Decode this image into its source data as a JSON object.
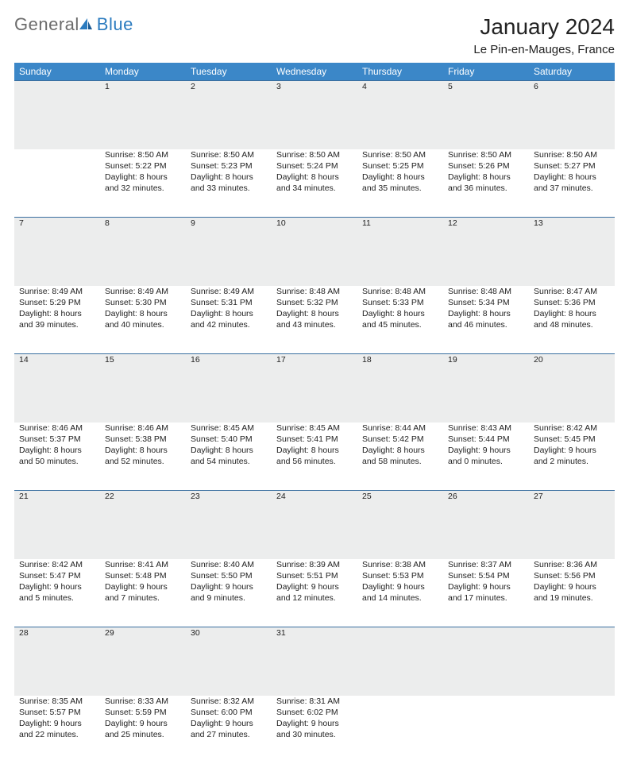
{
  "brand": {
    "text1": "General",
    "text2": "Blue"
  },
  "title": "January 2024",
  "location": "Le Pin-en-Mauges, France",
  "colors": {
    "header_bg": "#3b87c8",
    "header_text": "#ffffff",
    "daynum_bg": "#eceded",
    "daynum_border": "#3a6fa0",
    "logo_gray": "#6b6b6b",
    "logo_blue": "#2b7bbf"
  },
  "weekdays": [
    "Sunday",
    "Monday",
    "Tuesday",
    "Wednesday",
    "Thursday",
    "Friday",
    "Saturday"
  ],
  "weeks": [
    {
      "nums": [
        "",
        "1",
        "2",
        "3",
        "4",
        "5",
        "6"
      ],
      "cells": [
        null,
        {
          "sunrise": "Sunrise: 8:50 AM",
          "sunset": "Sunset: 5:22 PM",
          "d1": "Daylight: 8 hours",
          "d2": "and 32 minutes."
        },
        {
          "sunrise": "Sunrise: 8:50 AM",
          "sunset": "Sunset: 5:23 PM",
          "d1": "Daylight: 8 hours",
          "d2": "and 33 minutes."
        },
        {
          "sunrise": "Sunrise: 8:50 AM",
          "sunset": "Sunset: 5:24 PM",
          "d1": "Daylight: 8 hours",
          "d2": "and 34 minutes."
        },
        {
          "sunrise": "Sunrise: 8:50 AM",
          "sunset": "Sunset: 5:25 PM",
          "d1": "Daylight: 8 hours",
          "d2": "and 35 minutes."
        },
        {
          "sunrise": "Sunrise: 8:50 AM",
          "sunset": "Sunset: 5:26 PM",
          "d1": "Daylight: 8 hours",
          "d2": "and 36 minutes."
        },
        {
          "sunrise": "Sunrise: 8:50 AM",
          "sunset": "Sunset: 5:27 PM",
          "d1": "Daylight: 8 hours",
          "d2": "and 37 minutes."
        }
      ]
    },
    {
      "nums": [
        "7",
        "8",
        "9",
        "10",
        "11",
        "12",
        "13"
      ],
      "cells": [
        {
          "sunrise": "Sunrise: 8:49 AM",
          "sunset": "Sunset: 5:29 PM",
          "d1": "Daylight: 8 hours",
          "d2": "and 39 minutes."
        },
        {
          "sunrise": "Sunrise: 8:49 AM",
          "sunset": "Sunset: 5:30 PM",
          "d1": "Daylight: 8 hours",
          "d2": "and 40 minutes."
        },
        {
          "sunrise": "Sunrise: 8:49 AM",
          "sunset": "Sunset: 5:31 PM",
          "d1": "Daylight: 8 hours",
          "d2": "and 42 minutes."
        },
        {
          "sunrise": "Sunrise: 8:48 AM",
          "sunset": "Sunset: 5:32 PM",
          "d1": "Daylight: 8 hours",
          "d2": "and 43 minutes."
        },
        {
          "sunrise": "Sunrise: 8:48 AM",
          "sunset": "Sunset: 5:33 PM",
          "d1": "Daylight: 8 hours",
          "d2": "and 45 minutes."
        },
        {
          "sunrise": "Sunrise: 8:48 AM",
          "sunset": "Sunset: 5:34 PM",
          "d1": "Daylight: 8 hours",
          "d2": "and 46 minutes."
        },
        {
          "sunrise": "Sunrise: 8:47 AM",
          "sunset": "Sunset: 5:36 PM",
          "d1": "Daylight: 8 hours",
          "d2": "and 48 minutes."
        }
      ]
    },
    {
      "nums": [
        "14",
        "15",
        "16",
        "17",
        "18",
        "19",
        "20"
      ],
      "cells": [
        {
          "sunrise": "Sunrise: 8:46 AM",
          "sunset": "Sunset: 5:37 PM",
          "d1": "Daylight: 8 hours",
          "d2": "and 50 minutes."
        },
        {
          "sunrise": "Sunrise: 8:46 AM",
          "sunset": "Sunset: 5:38 PM",
          "d1": "Daylight: 8 hours",
          "d2": "and 52 minutes."
        },
        {
          "sunrise": "Sunrise: 8:45 AM",
          "sunset": "Sunset: 5:40 PM",
          "d1": "Daylight: 8 hours",
          "d2": "and 54 minutes."
        },
        {
          "sunrise": "Sunrise: 8:45 AM",
          "sunset": "Sunset: 5:41 PM",
          "d1": "Daylight: 8 hours",
          "d2": "and 56 minutes."
        },
        {
          "sunrise": "Sunrise: 8:44 AM",
          "sunset": "Sunset: 5:42 PM",
          "d1": "Daylight: 8 hours",
          "d2": "and 58 minutes."
        },
        {
          "sunrise": "Sunrise: 8:43 AM",
          "sunset": "Sunset: 5:44 PM",
          "d1": "Daylight: 9 hours",
          "d2": "and 0 minutes."
        },
        {
          "sunrise": "Sunrise: 8:42 AM",
          "sunset": "Sunset: 5:45 PM",
          "d1": "Daylight: 9 hours",
          "d2": "and 2 minutes."
        }
      ]
    },
    {
      "nums": [
        "21",
        "22",
        "23",
        "24",
        "25",
        "26",
        "27"
      ],
      "cells": [
        {
          "sunrise": "Sunrise: 8:42 AM",
          "sunset": "Sunset: 5:47 PM",
          "d1": "Daylight: 9 hours",
          "d2": "and 5 minutes."
        },
        {
          "sunrise": "Sunrise: 8:41 AM",
          "sunset": "Sunset: 5:48 PM",
          "d1": "Daylight: 9 hours",
          "d2": "and 7 minutes."
        },
        {
          "sunrise": "Sunrise: 8:40 AM",
          "sunset": "Sunset: 5:50 PM",
          "d1": "Daylight: 9 hours",
          "d2": "and 9 minutes."
        },
        {
          "sunrise": "Sunrise: 8:39 AM",
          "sunset": "Sunset: 5:51 PM",
          "d1": "Daylight: 9 hours",
          "d2": "and 12 minutes."
        },
        {
          "sunrise": "Sunrise: 8:38 AM",
          "sunset": "Sunset: 5:53 PM",
          "d1": "Daylight: 9 hours",
          "d2": "and 14 minutes."
        },
        {
          "sunrise": "Sunrise: 8:37 AM",
          "sunset": "Sunset: 5:54 PM",
          "d1": "Daylight: 9 hours",
          "d2": "and 17 minutes."
        },
        {
          "sunrise": "Sunrise: 8:36 AM",
          "sunset": "Sunset: 5:56 PM",
          "d1": "Daylight: 9 hours",
          "d2": "and 19 minutes."
        }
      ]
    },
    {
      "nums": [
        "28",
        "29",
        "30",
        "31",
        "",
        "",
        ""
      ],
      "cells": [
        {
          "sunrise": "Sunrise: 8:35 AM",
          "sunset": "Sunset: 5:57 PM",
          "d1": "Daylight: 9 hours",
          "d2": "and 22 minutes."
        },
        {
          "sunrise": "Sunrise: 8:33 AM",
          "sunset": "Sunset: 5:59 PM",
          "d1": "Daylight: 9 hours",
          "d2": "and 25 minutes."
        },
        {
          "sunrise": "Sunrise: 8:32 AM",
          "sunset": "Sunset: 6:00 PM",
          "d1": "Daylight: 9 hours",
          "d2": "and 27 minutes."
        },
        {
          "sunrise": "Sunrise: 8:31 AM",
          "sunset": "Sunset: 6:02 PM",
          "d1": "Daylight: 9 hours",
          "d2": "and 30 minutes."
        },
        null,
        null,
        null
      ]
    }
  ]
}
